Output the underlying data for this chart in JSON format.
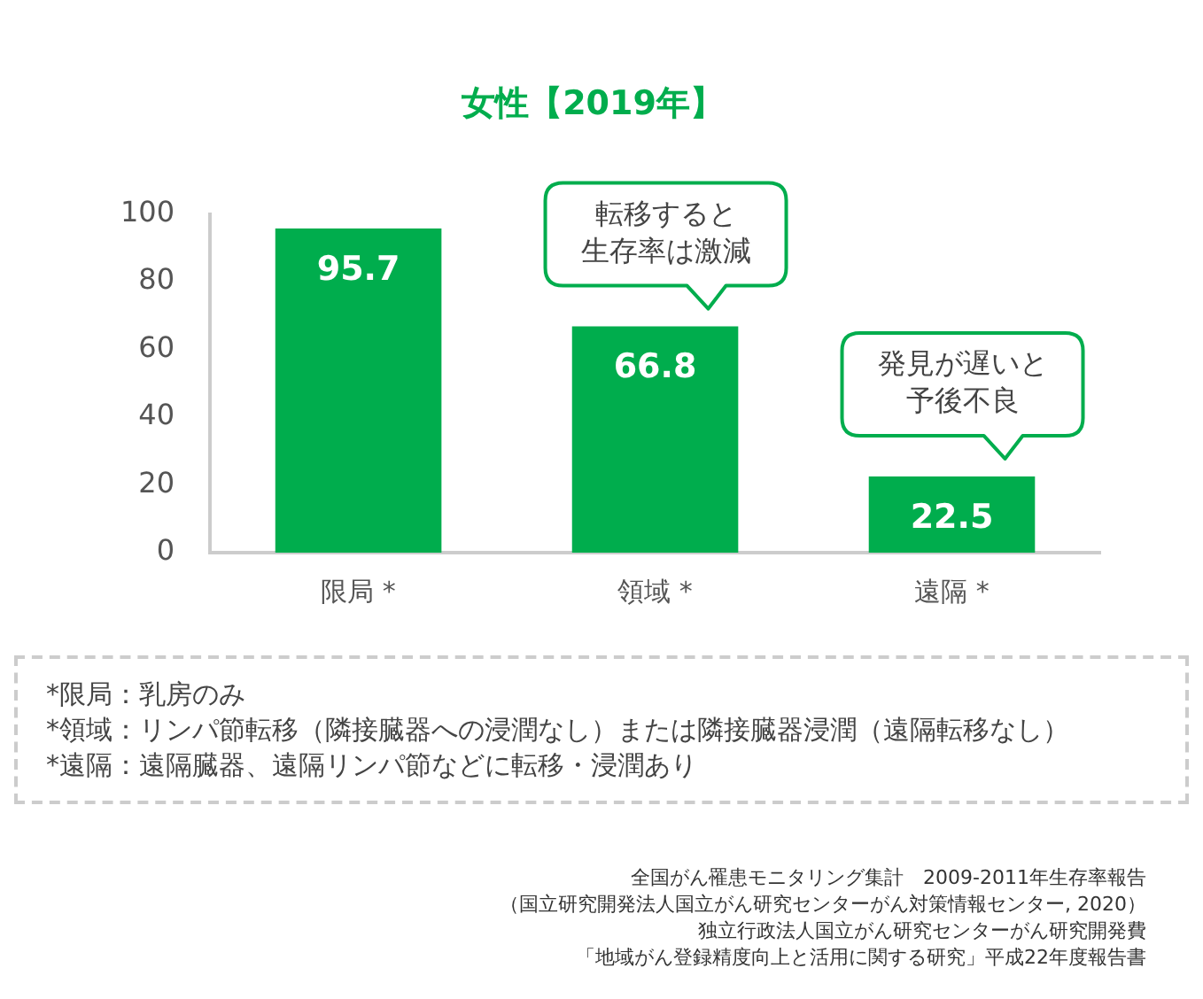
{
  "chart_data": {
    "type": "bar",
    "title": "女性【2019年】",
    "categories": [
      "限局 *",
      "領域 *",
      "遠隔 *"
    ],
    "values": [
      95.7,
      66.8,
      22.5
    ],
    "color": "#00ad4d",
    "ylim": [
      0,
      100
    ],
    "yticks": [
      0,
      20,
      40,
      60,
      80,
      100
    ],
    "grid": false,
    "legend": false,
    "data_labels": true,
    "annotations": [
      {
        "text": "転移すると生存率は激減",
        "x": "領域 *",
        "y": 66.8
      },
      {
        "text": "発見が遅いと予後不良",
        "x": "遠隔 *",
        "y": 22.5
      },
      "*限局：乳房のみ",
      "*領域：リンパ節転移（隣接臓器への浸潤なし）または隣接臓器浸潤（遠隔転移なし）",
      "*遠隔：遠隔臓器、遠隔リンパ節などに転移・浸潤あり",
      "全国がん罹患モニタリング集計　2009-2011年生存率報告",
      "（国立研究開発法人国立がん研究センターがん対策情報センター, 2020）",
      "独立行政法人国立がん研究センターがん研究開発費",
      "「地域がん登録精度向上と活用に関する研究」平成22年度報告書"
    ]
  }
}
